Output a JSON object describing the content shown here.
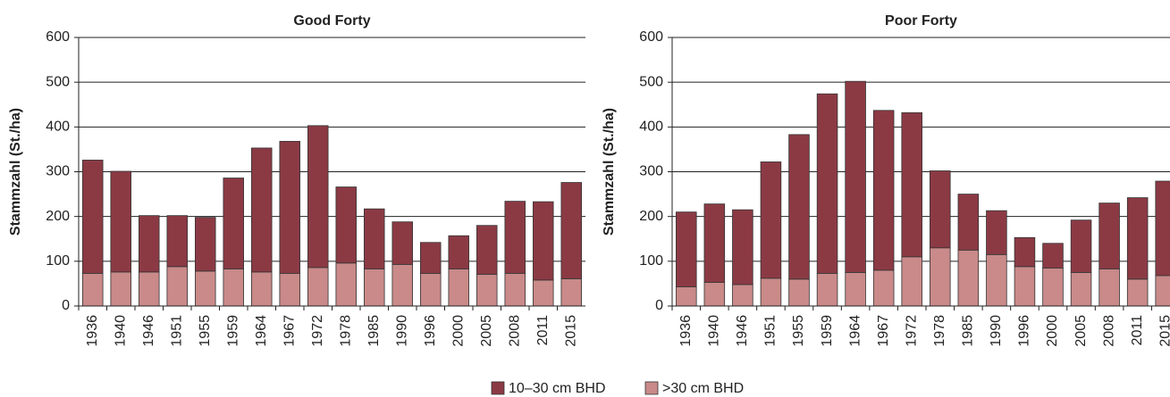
{
  "chart_data": [
    {
      "type": "stacked_bar",
      "title": "Good Forty",
      "y_label": "Stammzahl (St./ha)",
      "categories": [
        "1936",
        "1940",
        "1946",
        "1951",
        "1955",
        "1959",
        "1964",
        "1967",
        "1972",
        "1978",
        "1985",
        "1990",
        "1996",
        "2000",
        "2005",
        "2008",
        "2011",
        "2015"
      ],
      "series": [
        {
          "name": "10–30 cm BHD",
          "color": "#8b3a44",
          "values": [
            253,
            225,
            126,
            114,
            120,
            203,
            277,
            295,
            317,
            170,
            134,
            95,
            69,
            74,
            109,
            161,
            175,
            215
          ]
        },
        {
          "name": ">30 cm BHD",
          "color": "#c98a89",
          "values": [
            73,
            76,
            76,
            88,
            78,
            83,
            76,
            73,
            86,
            96,
            83,
            93,
            73,
            83,
            71,
            73,
            58,
            61
          ]
        }
      ],
      "ylim": [
        0,
        600
      ],
      "yticks": [
        0,
        100,
        200,
        300,
        400,
        500,
        600
      ],
      "grid": true
    },
    {
      "type": "stacked_bar",
      "title": "Poor Forty",
      "y_label": "Stammzahl (St./ha)",
      "categories": [
        "1936",
        "1940",
        "1946",
        "1951",
        "1955",
        "1959",
        "1964",
        "1967",
        "1972",
        "1978",
        "1985",
        "1990",
        "1996",
        "2000",
        "2005",
        "2008",
        "2011",
        "2015"
      ],
      "series": [
        {
          "name": "10–30 cm BHD",
          "color": "#8b3a44",
          "values": [
            167,
            175,
            167,
            260,
            323,
            401,
            427,
            357,
            322,
            172,
            125,
            98,
            65,
            55,
            117,
            147,
            182,
            211
          ]
        },
        {
          "name": ">30 cm BHD",
          "color": "#c98a89",
          "values": [
            43,
            53,
            48,
            62,
            60,
            73,
            75,
            80,
            110,
            130,
            125,
            115,
            88,
            85,
            75,
            83,
            60,
            68
          ]
        }
      ],
      "ylim": [
        0,
        600
      ],
      "yticks": [
        0,
        100,
        200,
        300,
        400,
        500,
        600
      ],
      "grid": true
    }
  ]
}
